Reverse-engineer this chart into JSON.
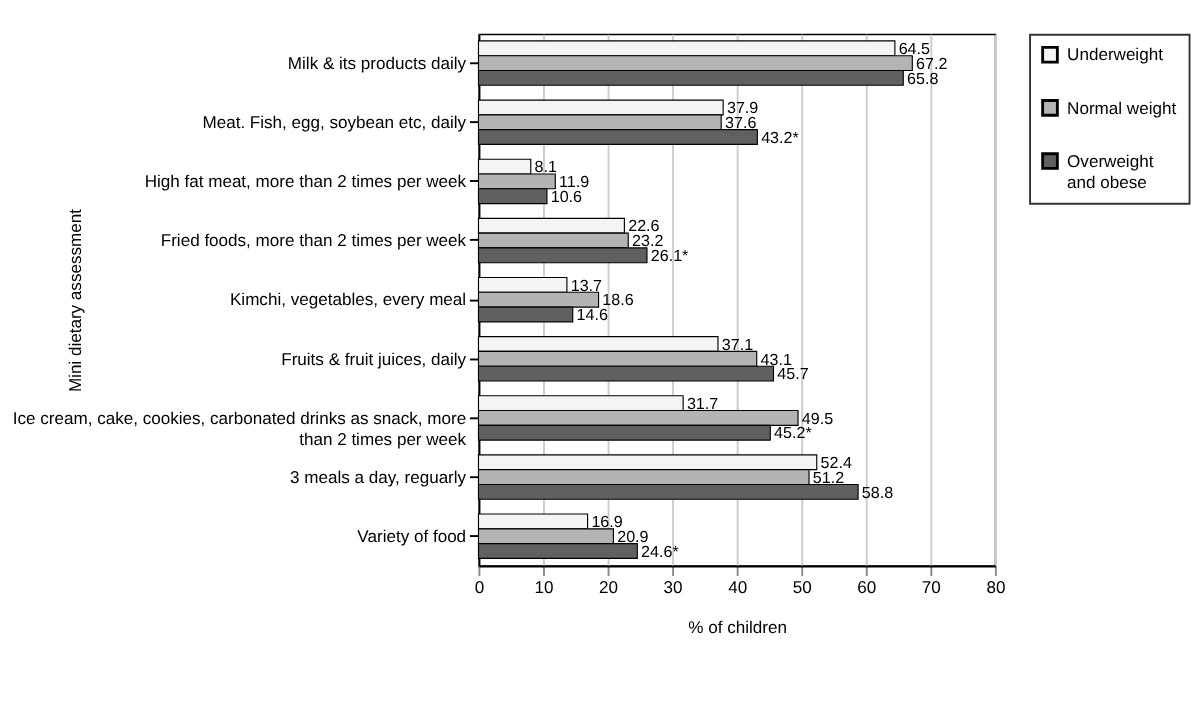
{
  "chart_data": {
    "type": "bar",
    "orientation": "horizontal",
    "xlabel": "% of children",
    "ylabel": "Mini dietary assessment",
    "categories": [
      "Milk & its products daily",
      "Meat. Fish, egg, soybean etc, daily",
      "High fat meat, more than 2 times per week",
      "Fried foods, more than 2 times per week",
      "Kimchi, vegetables, every meal",
      "Fruits & fruit juices, daily",
      "Ice cream, cake, cookies, carbonated drinks as snack, more than 2 times per week",
      "3 meals a day, reguarly",
      "Variety of food"
    ],
    "series": [
      {
        "name": "Underweight",
        "color": "#f4f4f4",
        "values": [
          64.5,
          37.9,
          8.1,
          22.6,
          13.7,
          37.1,
          31.7,
          52.4,
          16.9
        ],
        "value_labels": [
          "64.5",
          "37.9",
          "8.1",
          "22.6",
          "13.7",
          "37.1",
          "31.7",
          "52.4",
          "16.9"
        ]
      },
      {
        "name": "Normal weight",
        "color": "#b4b4b4",
        "values": [
          67.2,
          37.6,
          11.9,
          23.2,
          18.6,
          43.1,
          49.5,
          51.2,
          20.9
        ],
        "value_labels": [
          "67.2",
          "37.6",
          "11.9",
          "23.2",
          "18.6",
          "43.1",
          "49.5",
          "51.2",
          "20.9"
        ]
      },
      {
        "name": "Overweight and obese",
        "color": "#606060",
        "values": [
          65.8,
          43.2,
          10.6,
          26.1,
          14.6,
          45.7,
          45.2,
          58.8,
          24.6
        ],
        "value_labels": [
          "65.8",
          "43.2*",
          "10.6",
          "26.1*",
          "14.6",
          "45.7",
          "45.2*",
          "58.8",
          "24.6*"
        ]
      }
    ],
    "xlim": [
      0,
      80
    ],
    "xticks": [
      0,
      10,
      20,
      30,
      40,
      50,
      60,
      70,
      80
    ],
    "grid": "x",
    "legend": "right"
  }
}
